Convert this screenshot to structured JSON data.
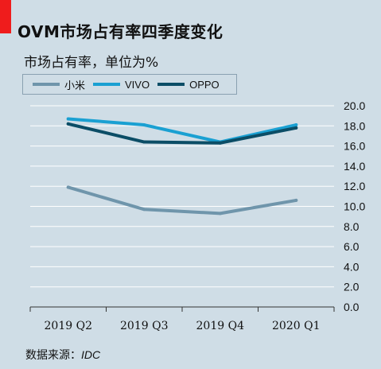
{
  "header": {
    "title": "OVM市场占有率四季度变化",
    "subtitle": "市场占有率，单位为%"
  },
  "source": {
    "label": "数据来源：",
    "org": "IDC"
  },
  "colors": {
    "accent": "#ef1c1c",
    "background": "#cfdde6"
  },
  "chart_data": {
    "type": "line",
    "categories": [
      "2019 Q2",
      "2019 Q3",
      "2019 Q4",
      "2020 Q1"
    ],
    "series": [
      {
        "name": "小米",
        "values": [
          11.9,
          9.7,
          9.3,
          10.6
        ],
        "color": "#6f95ab"
      },
      {
        "name": "VIVO",
        "values": [
          18.7,
          18.1,
          16.4,
          18.1
        ],
        "color": "#1aa0d2"
      },
      {
        "name": "OPPO",
        "values": [
          18.2,
          16.4,
          16.3,
          17.8
        ],
        "color": "#0b4d66"
      }
    ],
    "y_ticks": [
      "20.0",
      "18.0",
      "16.0",
      "14.0",
      "12.0",
      "10.0",
      "8.0",
      "6.0",
      "4.0",
      "2.0",
      "0.0"
    ],
    "ylim": [
      0,
      20
    ],
    "y_axis_side": "right",
    "grid": true,
    "legend_position": "top-left"
  }
}
